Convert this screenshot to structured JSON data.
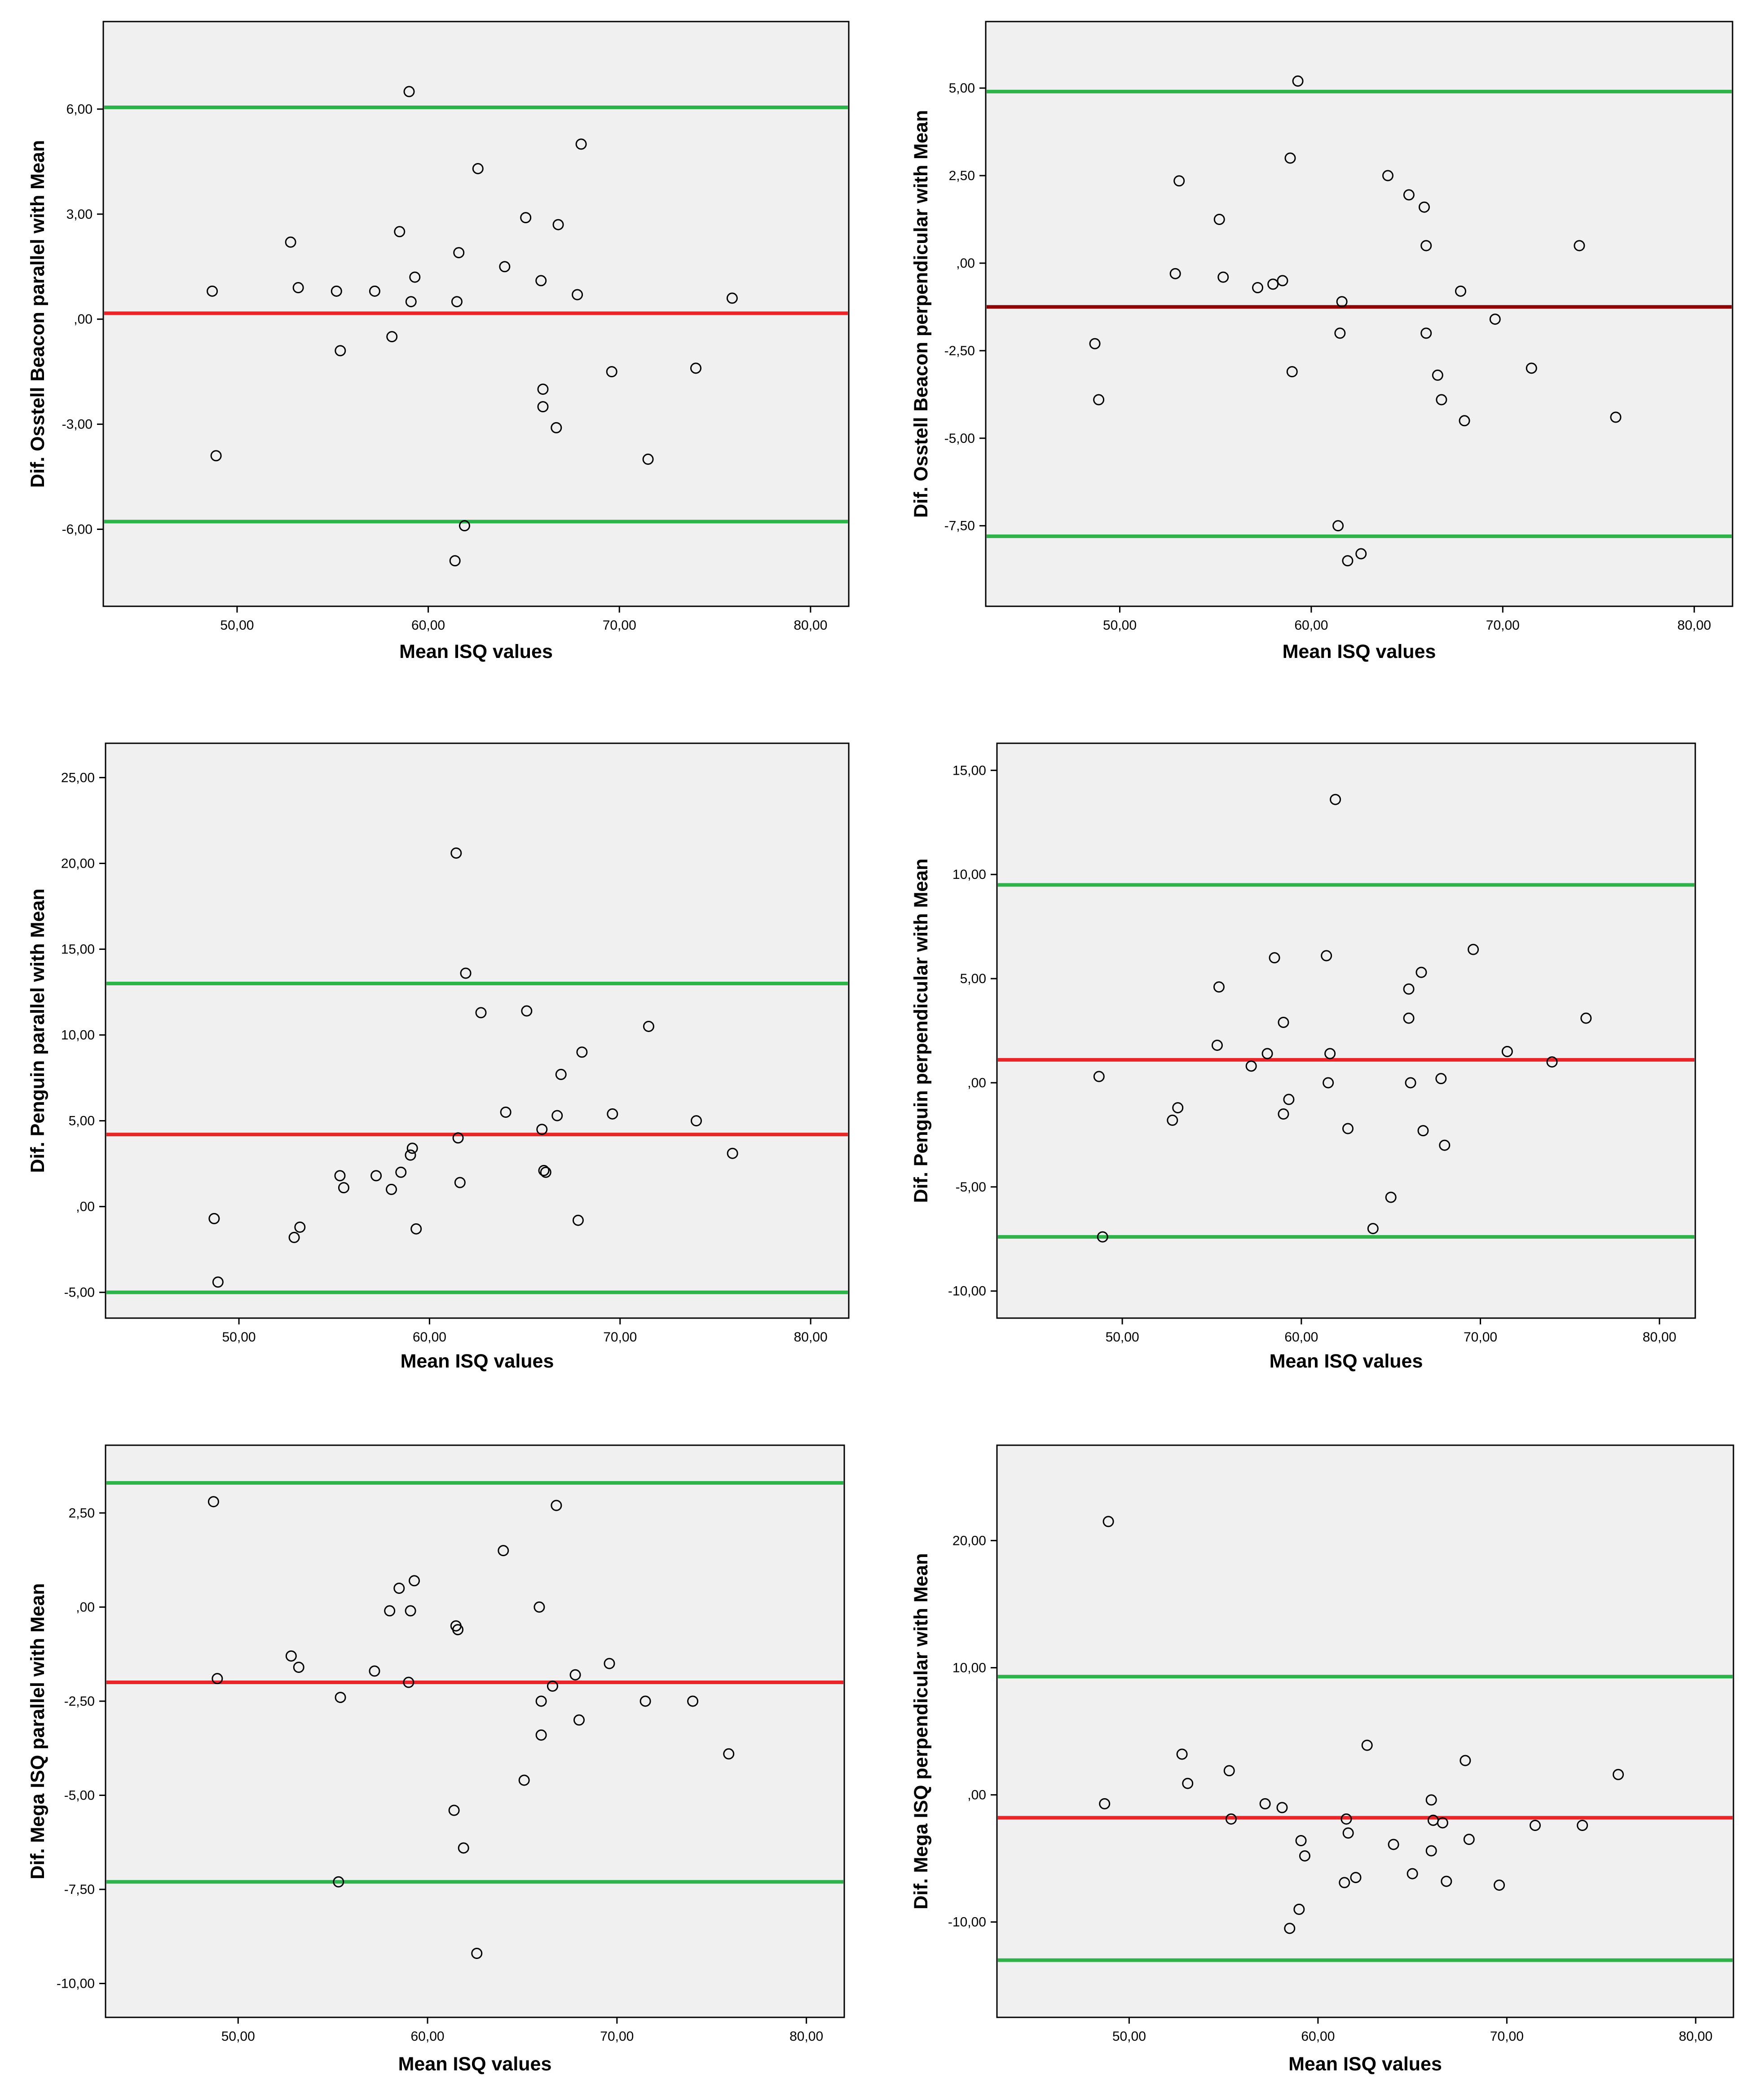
{
  "chart_data": [
    {
      "type": "scatter",
      "panel": "top-left",
      "xlabel": "Mean ISQ values",
      "ylabel": "Dif. Osstell Beacon parallel with Mean",
      "xlim": [
        43,
        82
      ],
      "ylim": [
        -8.2,
        8.5
      ],
      "xticks": [
        50,
        60,
        70,
        80
      ],
      "xtick_labels": [
        "50,00",
        "60,00",
        "70,00",
        "80,00"
      ],
      "yticks": [
        6,
        3,
        0,
        -3,
        -6
      ],
      "ytick_labels": [
        "6,00",
        "3,00",
        ",00",
        "-3,00",
        "-6,00"
      ],
      "lines": [
        {
          "name": "upper",
          "y": 6.05,
          "color": "#2db34a"
        },
        {
          "name": "mean",
          "y": 0.17,
          "color": "#e8262a"
        },
        {
          "name": "lower",
          "y": -5.78,
          "color": "#2db34a"
        }
      ],
      "points": [
        [
          48.7,
          0.8
        ],
        [
          48.9,
          -3.9
        ],
        [
          52.8,
          2.2
        ],
        [
          53.2,
          0.9
        ],
        [
          55.2,
          0.8
        ],
        [
          55.4,
          -0.9
        ],
        [
          57.2,
          0.8
        ],
        [
          58.1,
          -0.5
        ],
        [
          58.5,
          2.5
        ],
        [
          59.0,
          6.5
        ],
        [
          59.1,
          0.5
        ],
        [
          59.3,
          1.2
        ],
        [
          61.5,
          0.5
        ],
        [
          61.6,
          1.9
        ],
        [
          61.9,
          -5.9
        ],
        [
          61.4,
          -6.9
        ],
        [
          62.6,
          4.3
        ],
        [
          64.0,
          1.5
        ],
        [
          65.1,
          2.9
        ],
        [
          65.9,
          1.1
        ],
        [
          66.0,
          -2.0
        ],
        [
          66.0,
          -2.5
        ],
        [
          66.7,
          -3.1
        ],
        [
          66.8,
          2.7
        ],
        [
          67.8,
          0.7
        ],
        [
          68.0,
          5.0
        ],
        [
          69.6,
          -1.5
        ],
        [
          71.5,
          -4.0
        ],
        [
          74.0,
          -1.4
        ],
        [
          75.9,
          0.6
        ]
      ]
    },
    {
      "type": "scatter",
      "panel": "top-right",
      "xlabel": "Mean ISQ values",
      "ylabel": "Dif. Osstell Beacon perpendicular with Mean",
      "xlim": [
        43,
        82
      ],
      "ylim": [
        -9.8,
        6.9
      ],
      "xticks": [
        50,
        60,
        70,
        80
      ],
      "xtick_labels": [
        "50,00",
        "60,00",
        "70,00",
        "80,00"
      ],
      "yticks": [
        5,
        2.5,
        0,
        -2.5,
        -5,
        -7.5
      ],
      "ytick_labels": [
        "5,00",
        "2,50",
        ",00",
        "-2,50",
        "-5,00",
        "-7,50"
      ],
      "lines": [
        {
          "name": "upper",
          "y": 4.9,
          "color": "#2db34a"
        },
        {
          "name": "mean",
          "y": -1.25,
          "color": "#8b0000"
        },
        {
          "name": "lower",
          "y": -7.8,
          "color": "#2db34a"
        }
      ],
      "points": [
        [
          48.7,
          -2.3
        ],
        [
          48.9,
          -3.9
        ],
        [
          52.9,
          -0.3
        ],
        [
          53.1,
          2.35
        ],
        [
          55.2,
          1.25
        ],
        [
          55.4,
          -0.4
        ],
        [
          57.2,
          -0.7
        ],
        [
          58.0,
          -0.6
        ],
        [
          58.5,
          -0.5
        ],
        [
          58.9,
          3.0
        ],
        [
          59.0,
          -3.1
        ],
        [
          59.3,
          5.2
        ],
        [
          61.4,
          -7.5
        ],
        [
          61.5,
          -2.0
        ],
        [
          61.6,
          -1.1
        ],
        [
          61.9,
          -8.5
        ],
        [
          62.6,
          -8.3
        ],
        [
          64.0,
          2.5
        ],
        [
          65.1,
          1.95
        ],
        [
          65.9,
          1.6
        ],
        [
          66.0,
          0.5
        ],
        [
          66.0,
          -2.0
        ],
        [
          66.6,
          -3.2
        ],
        [
          66.8,
          -3.9
        ],
        [
          67.8,
          -0.8
        ],
        [
          68.0,
          -4.5
        ],
        [
          69.6,
          -1.6
        ],
        [
          71.5,
          -3.0
        ],
        [
          74.0,
          0.5
        ],
        [
          75.9,
          -4.4
        ]
      ]
    },
    {
      "type": "scatter",
      "panel": "middle-left",
      "xlabel": "Mean ISQ values",
      "ylabel": "Dif. Penguin parallel with Mean",
      "xlim": [
        43,
        82
      ],
      "ylim": [
        -6.5,
        27
      ],
      "xticks": [
        50,
        60,
        70,
        80
      ],
      "xtick_labels": [
        "50,00",
        "60,00",
        "70,00",
        "80,00"
      ],
      "yticks": [
        25,
        20,
        15,
        10,
        5,
        0,
        -5
      ],
      "ytick_labels": [
        "25,00",
        "20,00",
        "15,00",
        "10,00",
        "5,00",
        ",00",
        "-5,00"
      ],
      "lines": [
        {
          "name": "upper",
          "y": 13.0,
          "color": "#2db34a"
        },
        {
          "name": "mean",
          "y": 4.2,
          "color": "#e8262a"
        },
        {
          "name": "lower",
          "y": -5.0,
          "color": "#2db34a"
        }
      ],
      "points": [
        [
          48.7,
          -0.7
        ],
        [
          48.9,
          -4.4
        ],
        [
          52.9,
          -1.8
        ],
        [
          53.2,
          -1.2
        ],
        [
          55.3,
          1.8
        ],
        [
          55.5,
          1.1
        ],
        [
          57.2,
          1.8
        ],
        [
          58.0,
          1.0
        ],
        [
          58.5,
          2.0
        ],
        [
          59.0,
          3.0
        ],
        [
          59.1,
          3.4
        ],
        [
          59.3,
          -1.3
        ],
        [
          61.4,
          20.6
        ],
        [
          61.5,
          4.0
        ],
        [
          61.6,
          1.4
        ],
        [
          61.9,
          13.6
        ],
        [
          62.7,
          11.3
        ],
        [
          64.0,
          5.5
        ],
        [
          65.1,
          11.4
        ],
        [
          65.9,
          4.5
        ],
        [
          66.0,
          2.1
        ],
        [
          66.1,
          2.0
        ],
        [
          66.7,
          5.3
        ],
        [
          66.9,
          7.7
        ],
        [
          67.8,
          -0.8
        ],
        [
          68.0,
          9.0
        ],
        [
          69.6,
          5.4
        ],
        [
          71.5,
          10.5
        ],
        [
          74.0,
          5.0
        ],
        [
          75.9,
          3.1
        ]
      ]
    },
    {
      "type": "scatter",
      "panel": "middle-right",
      "xlabel": "Mean ISQ values",
      "ylabel": "Dif. Penguin perpendicular with Mean",
      "xlim": [
        43,
        82
      ],
      "ylim": [
        -11.3,
        16.3
      ],
      "xticks": [
        50,
        60,
        70,
        80
      ],
      "xtick_labels": [
        "50,00",
        "60,00",
        "70,00",
        "80,00"
      ],
      "yticks": [
        15,
        10,
        5,
        0,
        -5,
        -10
      ],
      "ytick_labels": [
        "15,00",
        "10,00",
        "5,00",
        ",00",
        "-5,00",
        "-10,00"
      ],
      "lines": [
        {
          "name": "upper",
          "y": 9.5,
          "color": "#2db34a"
        },
        {
          "name": "mean",
          "y": 1.1,
          "color": "#e8262a"
        },
        {
          "name": "lower",
          "y": -7.4,
          "color": "#2db34a"
        }
      ],
      "points": [
        [
          48.7,
          0.3
        ],
        [
          48.9,
          -7.4
        ],
        [
          52.8,
          -1.8
        ],
        [
          53.1,
          -1.2
        ],
        [
          55.3,
          1.8
        ],
        [
          55.4,
          4.6
        ],
        [
          57.2,
          0.8
        ],
        [
          58.1,
          1.4
        ],
        [
          58.5,
          6.0
        ],
        [
          59.0,
          -1.5
        ],
        [
          59.0,
          2.9
        ],
        [
          59.3,
          -0.8
        ],
        [
          61.4,
          6.1
        ],
        [
          61.5,
          0.0
        ],
        [
          61.6,
          1.4
        ],
        [
          61.9,
          13.6
        ],
        [
          62.6,
          -2.2
        ],
        [
          64.0,
          -7.0
        ],
        [
          65.0,
          -5.5
        ],
        [
          66.0,
          3.1
        ],
        [
          66.0,
          4.5
        ],
        [
          66.1,
          0.0
        ],
        [
          66.7,
          5.3
        ],
        [
          66.8,
          -2.3
        ],
        [
          67.8,
          0.2
        ],
        [
          68.0,
          -3.0
        ],
        [
          69.6,
          6.4
        ],
        [
          71.5,
          1.5
        ],
        [
          74.0,
          1.0
        ],
        [
          75.9,
          3.1
        ]
      ]
    },
    {
      "type": "scatter",
      "panel": "bottom-left",
      "xlabel": "Mean ISQ values",
      "ylabel": "Dif. Mega ISQ parallel with Mean",
      "xlim": [
        43,
        82
      ],
      "ylim": [
        -10.9,
        4.3
      ],
      "xticks": [
        50,
        60,
        70,
        80
      ],
      "xtick_labels": [
        "50,00",
        "60,00",
        "70,00",
        "80,00"
      ],
      "yticks": [
        2.5,
        0,
        -2.5,
        -5,
        -7.5,
        -10
      ],
      "ytick_labels": [
        "2,50",
        ",00",
        "-2,50",
        "-5,00",
        "-7,50",
        "-10,00"
      ],
      "lines": [
        {
          "name": "upper",
          "y": 3.3,
          "color": "#2db34a"
        },
        {
          "name": "mean",
          "y": -2.0,
          "color": "#e8262a"
        },
        {
          "name": "lower",
          "y": -7.3,
          "color": "#2db34a"
        }
      ],
      "points": [
        [
          48.7,
          2.8
        ],
        [
          48.9,
          -1.9
        ],
        [
          52.8,
          -1.3
        ],
        [
          53.2,
          -1.6
        ],
        [
          55.3,
          -7.3
        ],
        [
          55.4,
          -2.4
        ],
        [
          57.2,
          -1.7
        ],
        [
          58.0,
          -0.1
        ],
        [
          58.5,
          0.5
        ],
        [
          59.0,
          -2.0
        ],
        [
          59.1,
          -0.1
        ],
        [
          59.3,
          0.7
        ],
        [
          61.4,
          -5.4
        ],
        [
          61.5,
          -0.5
        ],
        [
          61.6,
          -0.6
        ],
        [
          61.9,
          -6.4
        ],
        [
          62.6,
          -9.2
        ],
        [
          64.0,
          1.5
        ],
        [
          65.1,
          -4.6
        ],
        [
          65.9,
          0.0
        ],
        [
          66.0,
          -2.5
        ],
        [
          66.0,
          -3.4
        ],
        [
          66.6,
          -2.1
        ],
        [
          66.8,
          2.7
        ],
        [
          67.8,
          -1.8
        ],
        [
          68.0,
          -3.0
        ],
        [
          69.6,
          -1.5
        ],
        [
          71.5,
          -2.5
        ],
        [
          74.0,
          -2.5
        ],
        [
          75.9,
          -3.9
        ]
      ]
    },
    {
      "type": "scatter",
      "panel": "bottom-right",
      "xlabel": "Mean ISQ values",
      "ylabel": "Dif. Mega ISQ perpendicular with Mean",
      "xlim": [
        43,
        82
      ],
      "ylim": [
        -17.5,
        27.5
      ],
      "xticks": [
        50,
        60,
        70,
        80
      ],
      "xtick_labels": [
        "50,00",
        "60,00",
        "70,00",
        "80,00"
      ],
      "yticks": [
        20,
        10,
        0,
        -10
      ],
      "ytick_labels": [
        "20,00",
        "10,00",
        ",00",
        "-10,00"
      ],
      "lines": [
        {
          "name": "upper",
          "y": 9.3,
          "color": "#2db34a"
        },
        {
          "name": "mean",
          "y": -1.8,
          "color": "#e8262a"
        },
        {
          "name": "lower",
          "y": -13.0,
          "color": "#2db34a"
        }
      ],
      "points": [
        [
          48.7,
          -0.7
        ],
        [
          48.9,
          21.5
        ],
        [
          52.8,
          3.2
        ],
        [
          53.1,
          0.9
        ],
        [
          55.3,
          1.9
        ],
        [
          55.4,
          -1.9
        ],
        [
          57.2,
          -0.7
        ],
        [
          58.1,
          -1.0
        ],
        [
          58.5,
          -10.5
        ],
        [
          59.0,
          -9.0
        ],
        [
          59.1,
          -3.6
        ],
        [
          59.3,
          -4.8
        ],
        [
          61.4,
          -6.9
        ],
        [
          61.5,
          -1.9
        ],
        [
          61.6,
          -3.0
        ],
        [
          62.0,
          -6.5
        ],
        [
          62.6,
          3.9
        ],
        [
          64.0,
          -3.9
        ],
        [
          65.0,
          -6.2
        ],
        [
          66.0,
          -0.4
        ],
        [
          66.0,
          -4.4
        ],
        [
          66.1,
          -2.0
        ],
        [
          66.6,
          -2.2
        ],
        [
          66.8,
          -6.8
        ],
        [
          67.8,
          2.7
        ],
        [
          68.0,
          -3.5
        ],
        [
          69.6,
          -7.1
        ],
        [
          71.5,
          -2.4
        ],
        [
          74.0,
          -2.4
        ],
        [
          75.9,
          1.6
        ]
      ]
    }
  ]
}
